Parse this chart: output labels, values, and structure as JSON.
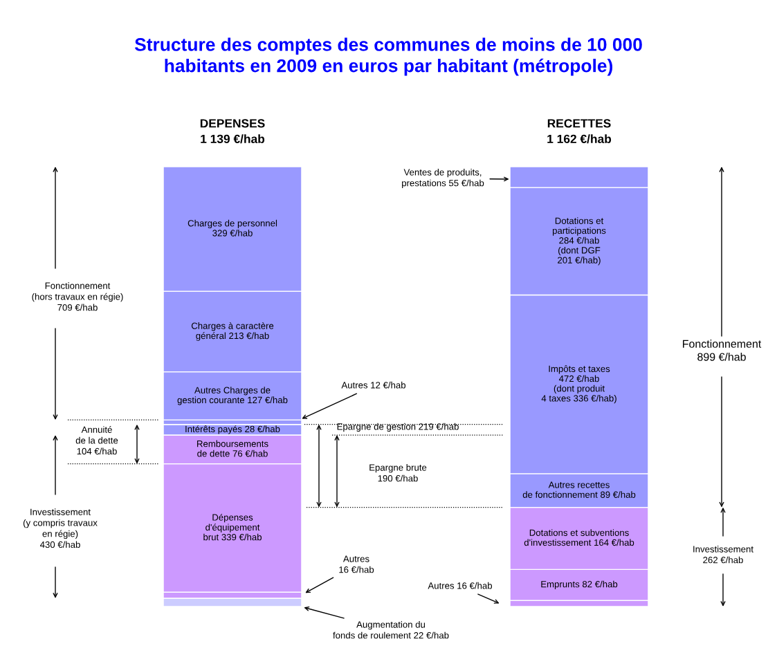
{
  "chart_data": {
    "type": "bar",
    "stacked": true,
    "title": "Structure des comptes des communes de moins de 10 000\nhabitants en 2009 en euros par habitant (métropole)",
    "categories": [
      "DEPENSES\n1 139 €/hab",
      "RECETTES\n1 162 €/hab"
    ],
    "series": [
      {
        "color": "#ccccff",
        "values": [
          22,
          null
        ],
        "value_labels": [
          null,
          null
        ]
      },
      {
        "color": "#cc99ff",
        "values": [
          16,
          null
        ],
        "value_labels": [
          null,
          null
        ]
      },
      {
        "color": "#cc99ff",
        "values": [
          339,
          null
        ],
        "value_labels": [
          "Dépenses\nd'équipement\nbrut 339 €/hab",
          null
        ]
      },
      {
        "color": "#cc99ff",
        "values": [
          76,
          null
        ],
        "value_labels": [
          "Remboursements\nde dette 76 €/hab",
          null
        ]
      },
      {
        "color": "#9999ff",
        "values": [
          28,
          null
        ],
        "value_labels": [
          "Intérêts payés 28 €/hab",
          null
        ]
      },
      {
        "color": "#9999ff",
        "values": [
          12,
          null
        ],
        "value_labels": [
          null,
          null
        ]
      },
      {
        "color": "#9999ff",
        "values": [
          127,
          null
        ],
        "value_labels": [
          "Autres Charges de\ngestion courante 127 €/hab",
          null
        ]
      },
      {
        "color": "#9999ff",
        "values": [
          213,
          null
        ],
        "value_labels": [
          "Charges à caractère\ngénéral 213 €/hab",
          null
        ]
      },
      {
        "color": "#9999ff",
        "values": [
          329,
          null
        ],
        "value_labels": [
          "Charges de personnel\n329 €/hab",
          null
        ]
      },
      {
        "color": "#cc99ff",
        "values": [
          null,
          16
        ],
        "value_labels": [
          null,
          null
        ]
      },
      {
        "color": "#cc99ff",
        "values": [
          null,
          82
        ],
        "value_labels": [
          null,
          "Emprunts 82 €/hab"
        ]
      },
      {
        "color": "#cc99ff",
        "values": [
          null,
          164
        ],
        "value_labels": [
          null,
          "Dotations et subventions\nd'investissement 164 €/hab"
        ]
      },
      {
        "color": "#9999ff",
        "values": [
          null,
          89
        ],
        "value_labels": [
          null,
          "Autres recettes\nde fonctionnement 89 €/hab"
        ]
      },
      {
        "color": "#9999ff",
        "values": [
          null,
          472
        ],
        "value_labels": [
          null,
          "Impôts et taxes\n472 €/hab\n(dont produit\n4 taxes 336 €/hab)"
        ]
      },
      {
        "color": "#9999ff",
        "values": [
          null,
          284
        ],
        "value_labels": [
          null,
          "Dotations et\nparticipations\n284 €/hab\n(dont DGF\n201 €/hab)"
        ]
      },
      {
        "color": "#9999ff",
        "values": [
          null,
          55
        ],
        "value_labels": [
          null,
          null
        ]
      }
    ],
    "annotations": [
      "Fonctionnement\n(hors travaux en régie)\n709 €/hab",
      "Investissement\n(y compris travaux\nen régie)\n430 €/hab",
      "Annuité\nde la dette\n104 €/hab",
      "Epargne de gestion 219 €/hab",
      "Epargne brute\n190 €/hab",
      "Fonctionnement\n899 €/hab",
      "Investissement\n262 €/hab",
      "Autres 12 €/hab",
      "Autres\n16 €/hab",
      "Augmentation du\nfonds de roulement 22 €/hab",
      "Ventes de produits,\nprestations 55 €/hab",
      "Autres 16 €/hab"
    ],
    "ref_lines": [
      {
        "axis": "y",
        "value": 493,
        "color": "#000000",
        "line_style": "dotted"
      },
      {
        "axis": "y",
        "value": 377,
        "color": "#000000",
        "line_style": "dotted"
      },
      {
        "axis": "y",
        "value": 481,
        "color": "#000000",
        "line_style": "dotted"
      },
      {
        "axis": "y",
        "value": 453,
        "color": "#000000",
        "line_style": "dotted"
      },
      {
        "axis": "y",
        "value": 262,
        "color": "#000000",
        "line_style": "dotted"
      }
    ],
    "tick_labels": "x",
    "legend": false,
    "grid": false
  }
}
